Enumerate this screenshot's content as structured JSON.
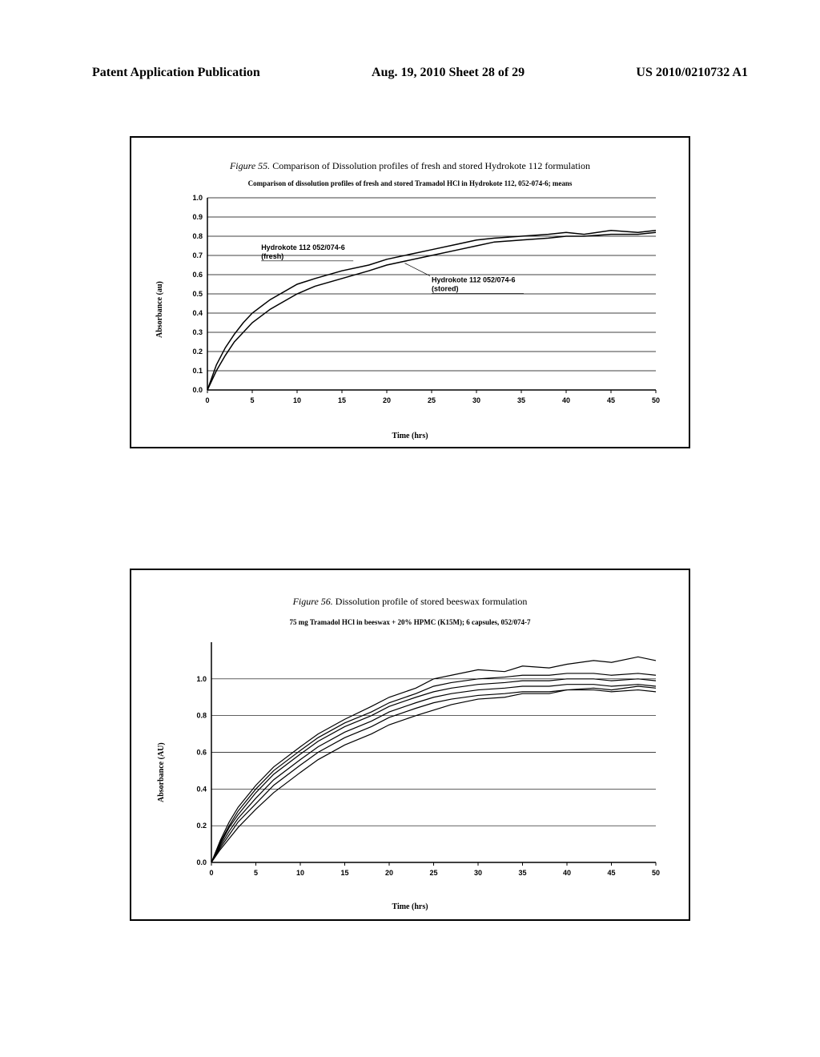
{
  "header": {
    "left": "Patent Application Publication",
    "center": "Aug. 19, 2010  Sheet 28 of 29",
    "right": "US 2010/0210732 A1"
  },
  "chart1": {
    "type": "line",
    "title_prefix": "Figure 55.",
    "title": "Comparison of Dissolution profiles of fresh and stored Hydrokote 112 formulation",
    "subtitle": "Comparison of dissolution profiles of fresh and stored Tramadol HCl in Hydrokote 112, 052-074-6; means",
    "xlabel": "Time (hrs)",
    "ylabel": "Absorbance (au)",
    "xlim": [
      0,
      50
    ],
    "ylim": [
      0,
      1.0
    ],
    "xticks": [
      0,
      5,
      10,
      15,
      20,
      25,
      30,
      35,
      40,
      45,
      50
    ],
    "yticks": [
      0.0,
      0.1,
      0.2,
      0.3,
      0.4,
      0.5,
      0.6,
      0.7,
      0.8,
      0.9,
      1.0
    ],
    "ytick_labels": [
      "0.0",
      "0.1",
      "0.2",
      "0.3",
      "0.4",
      "0.5",
      "0.6",
      "0.7",
      "0.8",
      "0.9",
      "1.0"
    ],
    "background_color": "#ffffff",
    "grid_color": "#000000",
    "line_color": "#000000",
    "line_width": 1.5,
    "series": [
      {
        "name": "fresh",
        "label": "Hydrokote 112 052/074-6\n(fresh)",
        "label_x": 6,
        "label_y": 0.73,
        "points": [
          [
            0,
            0
          ],
          [
            1,
            0.13
          ],
          [
            2,
            0.22
          ],
          [
            3,
            0.29
          ],
          [
            4,
            0.35
          ],
          [
            5,
            0.4
          ],
          [
            7,
            0.47
          ],
          [
            10,
            0.55
          ],
          [
            12,
            0.58
          ],
          [
            15,
            0.62
          ],
          [
            18,
            0.65
          ],
          [
            20,
            0.68
          ],
          [
            25,
            0.73
          ],
          [
            28,
            0.76
          ],
          [
            30,
            0.78
          ],
          [
            32,
            0.79
          ],
          [
            35,
            0.8
          ],
          [
            38,
            0.81
          ],
          [
            40,
            0.82
          ],
          [
            42,
            0.81
          ],
          [
            45,
            0.83
          ],
          [
            48,
            0.82
          ],
          [
            50,
            0.83
          ]
        ]
      },
      {
        "name": "stored",
        "label": "Hydrokote 112 052/074-6\n(stored)",
        "label_x": 25,
        "label_y": 0.56,
        "points": [
          [
            0,
            0
          ],
          [
            1,
            0.1
          ],
          [
            2,
            0.18
          ],
          [
            3,
            0.25
          ],
          [
            4,
            0.3
          ],
          [
            5,
            0.35
          ],
          [
            7,
            0.42
          ],
          [
            10,
            0.5
          ],
          [
            12,
            0.54
          ],
          [
            15,
            0.58
          ],
          [
            18,
            0.62
          ],
          [
            20,
            0.65
          ],
          [
            25,
            0.7
          ],
          [
            28,
            0.73
          ],
          [
            30,
            0.75
          ],
          [
            32,
            0.77
          ],
          [
            35,
            0.78
          ],
          [
            38,
            0.79
          ],
          [
            40,
            0.8
          ],
          [
            42,
            0.8
          ],
          [
            45,
            0.81
          ],
          [
            48,
            0.81
          ],
          [
            50,
            0.82
          ]
        ]
      }
    ]
  },
  "chart2": {
    "type": "line",
    "title_prefix": "Figure 56.",
    "title": "Dissolution profile of stored beeswax formulation",
    "subtitle": "75 mg Tramadol HCl in beeswax + 20% HPMC (K15M); 6 capsules, 052/074-7",
    "xlabel": "Time (hrs)",
    "ylabel": "Absorbance (AU)",
    "xlim": [
      0,
      50
    ],
    "ylim": [
      0,
      1.2
    ],
    "xticks": [
      0,
      5,
      10,
      15,
      20,
      25,
      30,
      35,
      40,
      45,
      50
    ],
    "yticks": [
      0.0,
      0.2,
      0.4,
      0.6,
      0.8,
      1.0
    ],
    "ytick_labels": [
      "0.0",
      "0.2",
      "0.4",
      "0.6",
      "0.8",
      "1.0"
    ],
    "background_color": "#ffffff",
    "grid_color": "#000000",
    "line_color": "#000000",
    "line_width": 1.2,
    "series": [
      {
        "points": [
          [
            0,
            0
          ],
          [
            1,
            0.12
          ],
          [
            2,
            0.22
          ],
          [
            3,
            0.3
          ],
          [
            5,
            0.42
          ],
          [
            7,
            0.52
          ],
          [
            10,
            0.63
          ],
          [
            12,
            0.7
          ],
          [
            15,
            0.78
          ],
          [
            18,
            0.85
          ],
          [
            20,
            0.9
          ],
          [
            23,
            0.95
          ],
          [
            25,
            1.0
          ],
          [
            27,
            1.02
          ],
          [
            30,
            1.05
          ],
          [
            33,
            1.04
          ],
          [
            35,
            1.07
          ],
          [
            38,
            1.06
          ],
          [
            40,
            1.08
          ],
          [
            43,
            1.1
          ],
          [
            45,
            1.09
          ],
          [
            48,
            1.12
          ],
          [
            50,
            1.1
          ]
        ]
      },
      {
        "points": [
          [
            0,
            0
          ],
          [
            1,
            0.11
          ],
          [
            2,
            0.2
          ],
          [
            3,
            0.28
          ],
          [
            5,
            0.4
          ],
          [
            7,
            0.5
          ],
          [
            10,
            0.61
          ],
          [
            12,
            0.68
          ],
          [
            15,
            0.76
          ],
          [
            18,
            0.82
          ],
          [
            20,
            0.87
          ],
          [
            23,
            0.92
          ],
          [
            25,
            0.96
          ],
          [
            27,
            0.98
          ],
          [
            30,
            1.0
          ],
          [
            33,
            1.01
          ],
          [
            35,
            1.02
          ],
          [
            38,
            1.02
          ],
          [
            40,
            1.03
          ],
          [
            43,
            1.03
          ],
          [
            45,
            1.02
          ],
          [
            48,
            1.03
          ],
          [
            50,
            1.02
          ]
        ]
      },
      {
        "points": [
          [
            0,
            0
          ],
          [
            1,
            0.1
          ],
          [
            2,
            0.19
          ],
          [
            3,
            0.26
          ],
          [
            5,
            0.38
          ],
          [
            7,
            0.48
          ],
          [
            10,
            0.59
          ],
          [
            12,
            0.66
          ],
          [
            15,
            0.74
          ],
          [
            18,
            0.8
          ],
          [
            20,
            0.85
          ],
          [
            23,
            0.9
          ],
          [
            25,
            0.93
          ],
          [
            27,
            0.95
          ],
          [
            30,
            0.97
          ],
          [
            33,
            0.98
          ],
          [
            35,
            0.99
          ],
          [
            38,
            0.99
          ],
          [
            40,
            1.0
          ],
          [
            43,
            1.0
          ],
          [
            45,
            0.99
          ],
          [
            48,
            1.0
          ],
          [
            50,
            0.99
          ]
        ]
      },
      {
        "points": [
          [
            0,
            0
          ],
          [
            1,
            0.09
          ],
          [
            2,
            0.17
          ],
          [
            3,
            0.24
          ],
          [
            5,
            0.35
          ],
          [
            7,
            0.45
          ],
          [
            10,
            0.56
          ],
          [
            12,
            0.63
          ],
          [
            15,
            0.71
          ],
          [
            18,
            0.77
          ],
          [
            20,
            0.82
          ],
          [
            23,
            0.87
          ],
          [
            25,
            0.9
          ],
          [
            27,
            0.92
          ],
          [
            30,
            0.94
          ],
          [
            33,
            0.95
          ],
          [
            35,
            0.96
          ],
          [
            38,
            0.96
          ],
          [
            40,
            0.97
          ],
          [
            43,
            0.97
          ],
          [
            45,
            0.96
          ],
          [
            48,
            0.97
          ],
          [
            50,
            0.96
          ]
        ]
      },
      {
        "points": [
          [
            0,
            0
          ],
          [
            1,
            0.08
          ],
          [
            2,
            0.15
          ],
          [
            3,
            0.22
          ],
          [
            5,
            0.32
          ],
          [
            7,
            0.42
          ],
          [
            10,
            0.53
          ],
          [
            12,
            0.6
          ],
          [
            15,
            0.68
          ],
          [
            18,
            0.74
          ],
          [
            20,
            0.79
          ],
          [
            23,
            0.84
          ],
          [
            25,
            0.87
          ],
          [
            27,
            0.89
          ],
          [
            30,
            0.91
          ],
          [
            33,
            0.92
          ],
          [
            35,
            0.93
          ],
          [
            38,
            0.93
          ],
          [
            40,
            0.94
          ],
          [
            43,
            0.94
          ],
          [
            45,
            0.93
          ],
          [
            48,
            0.94
          ],
          [
            50,
            0.93
          ]
        ]
      },
      {
        "points": [
          [
            0,
            0
          ],
          [
            1,
            0.07
          ],
          [
            2,
            0.13
          ],
          [
            3,
            0.19
          ],
          [
            5,
            0.29
          ],
          [
            7,
            0.38
          ],
          [
            10,
            0.49
          ],
          [
            12,
            0.56
          ],
          [
            15,
            0.64
          ],
          [
            18,
            0.7
          ],
          [
            20,
            0.75
          ],
          [
            23,
            0.8
          ],
          [
            25,
            0.83
          ],
          [
            27,
            0.86
          ],
          [
            30,
            0.89
          ],
          [
            33,
            0.9
          ],
          [
            35,
            0.92
          ],
          [
            38,
            0.92
          ],
          [
            40,
            0.94
          ],
          [
            43,
            0.95
          ],
          [
            45,
            0.94
          ],
          [
            48,
            0.96
          ],
          [
            50,
            0.95
          ]
        ]
      }
    ]
  }
}
